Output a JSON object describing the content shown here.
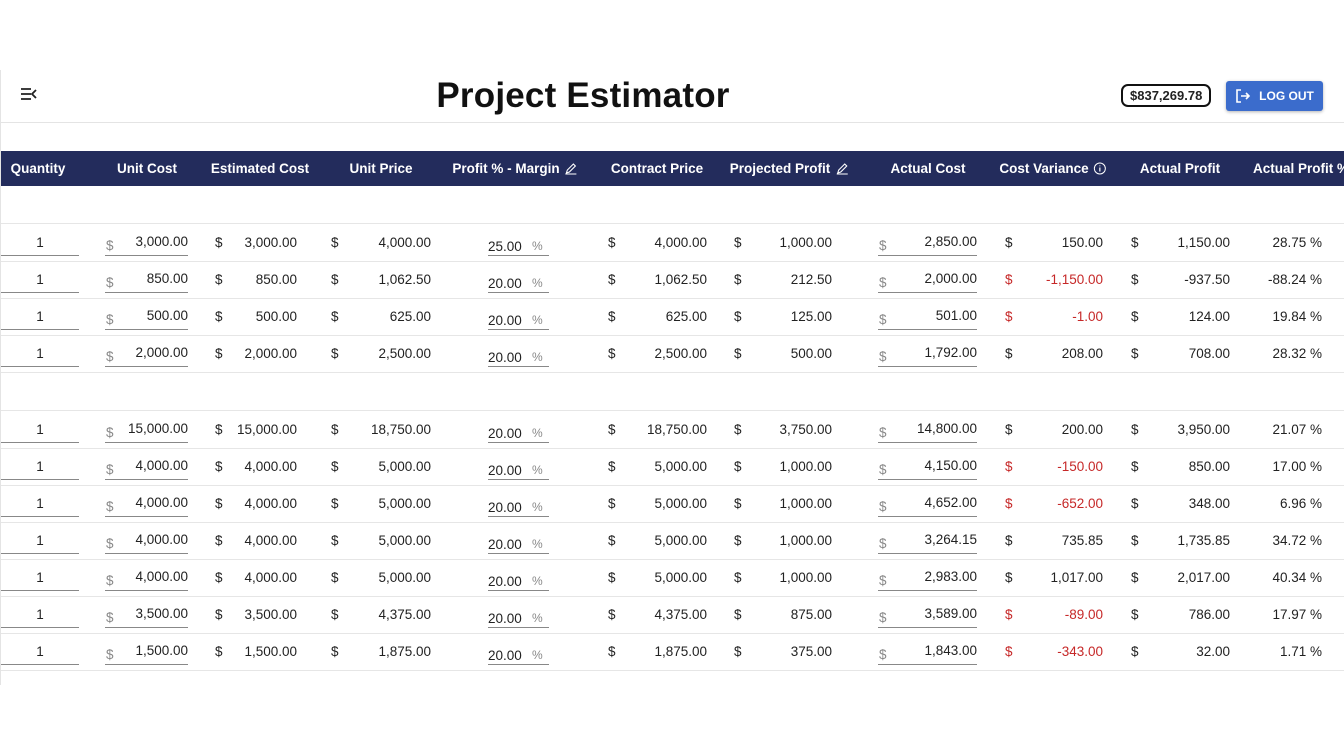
{
  "header": {
    "title": "Project Estimator",
    "balance": "$837,269.78",
    "logout_label": "LOG OUT",
    "menu_icon": "menu-collapse-icon",
    "logout_icon": "logout-icon"
  },
  "table": {
    "columns": [
      "Quantity",
      "Unit Cost",
      "Estimated Cost",
      "Unit Price",
      "Profit % - Margin",
      "Contract Price",
      "Projected Profit",
      "Actual Cost",
      "Cost Variance",
      "Actual Profit",
      "Actual Profit %"
    ],
    "currency_symbol": "$",
    "percent_symbol": "%",
    "negative_color": "#c62828",
    "header_color": "#232c5c",
    "groups": [
      {
        "rows": [
          {
            "qty": "1",
            "unit_cost": "3,000.00",
            "est_cost": "3,000.00",
            "unit_price": "4,000.00",
            "margin": "25.00",
            "contract": "4,000.00",
            "proj_profit": "1,000.00",
            "actual_cost": "2,850.00",
            "variance": "150.00",
            "variance_negative": false,
            "actual_profit": "1,150.00",
            "actual_pct": "28.75 %"
          },
          {
            "qty": "1",
            "unit_cost": "850.00",
            "est_cost": "850.00",
            "unit_price": "1,062.50",
            "margin": "20.00",
            "contract": "1,062.50",
            "proj_profit": "212.50",
            "actual_cost": "2,000.00",
            "variance": "-1,150.00",
            "variance_negative": true,
            "actual_profit": "-937.50",
            "actual_pct": "-88.24 %"
          },
          {
            "qty": "1",
            "unit_cost": "500.00",
            "est_cost": "500.00",
            "unit_price": "625.00",
            "margin": "20.00",
            "contract": "625.00",
            "proj_profit": "125.00",
            "actual_cost": "501.00",
            "variance": "-1.00",
            "variance_negative": true,
            "actual_profit": "124.00",
            "actual_pct": "19.84 %"
          },
          {
            "qty": "1",
            "unit_cost": "2,000.00",
            "est_cost": "2,000.00",
            "unit_price": "2,500.00",
            "margin": "20.00",
            "contract": "2,500.00",
            "proj_profit": "500.00",
            "actual_cost": "1,792.00",
            "variance": "208.00",
            "variance_negative": false,
            "actual_profit": "708.00",
            "actual_pct": "28.32 %"
          }
        ]
      },
      {
        "rows": [
          {
            "qty": "1",
            "unit_cost": "15,000.00",
            "est_cost": "15,000.00",
            "unit_price": "18,750.00",
            "margin": "20.00",
            "contract": "18,750.00",
            "proj_profit": "3,750.00",
            "actual_cost": "14,800.00",
            "variance": "200.00",
            "variance_negative": false,
            "actual_profit": "3,950.00",
            "actual_pct": "21.07 %"
          },
          {
            "qty": "1",
            "unit_cost": "4,000.00",
            "est_cost": "4,000.00",
            "unit_price": "5,000.00",
            "margin": "20.00",
            "contract": "5,000.00",
            "proj_profit": "1,000.00",
            "actual_cost": "4,150.00",
            "variance": "-150.00",
            "variance_negative": true,
            "actual_profit": "850.00",
            "actual_pct": "17.00 %"
          },
          {
            "qty": "1",
            "unit_cost": "4,000.00",
            "est_cost": "4,000.00",
            "unit_price": "5,000.00",
            "margin": "20.00",
            "contract": "5,000.00",
            "proj_profit": "1,000.00",
            "actual_cost": "4,652.00",
            "variance": "-652.00",
            "variance_negative": true,
            "actual_profit": "348.00",
            "actual_pct": "6.96 %"
          },
          {
            "qty": "1",
            "unit_cost": "4,000.00",
            "est_cost": "4,000.00",
            "unit_price": "5,000.00",
            "margin": "20.00",
            "contract": "5,000.00",
            "proj_profit": "1,000.00",
            "actual_cost": "3,264.15",
            "variance": "735.85",
            "variance_negative": false,
            "actual_profit": "1,735.85",
            "actual_pct": "34.72 %"
          },
          {
            "qty": "1",
            "unit_cost": "4,000.00",
            "est_cost": "4,000.00",
            "unit_price": "5,000.00",
            "margin": "20.00",
            "contract": "5,000.00",
            "proj_profit": "1,000.00",
            "actual_cost": "2,983.00",
            "variance": "1,017.00",
            "variance_negative": false,
            "actual_profit": "2,017.00",
            "actual_pct": "40.34 %"
          },
          {
            "qty": "1",
            "unit_cost": "3,500.00",
            "est_cost": "3,500.00",
            "unit_price": "4,375.00",
            "margin": "20.00",
            "contract": "4,375.00",
            "proj_profit": "875.00",
            "actual_cost": "3,589.00",
            "variance": "-89.00",
            "variance_negative": true,
            "actual_profit": "786.00",
            "actual_pct": "17.97 %"
          },
          {
            "qty": "1",
            "unit_cost": "1,500.00",
            "est_cost": "1,500.00",
            "unit_price": "1,875.00",
            "margin": "20.00",
            "contract": "1,875.00",
            "proj_profit": "375.00",
            "actual_cost": "1,843.00",
            "variance": "-343.00",
            "variance_negative": true,
            "actual_profit": "32.00",
            "actual_pct": "1.71 %"
          }
        ]
      }
    ]
  }
}
